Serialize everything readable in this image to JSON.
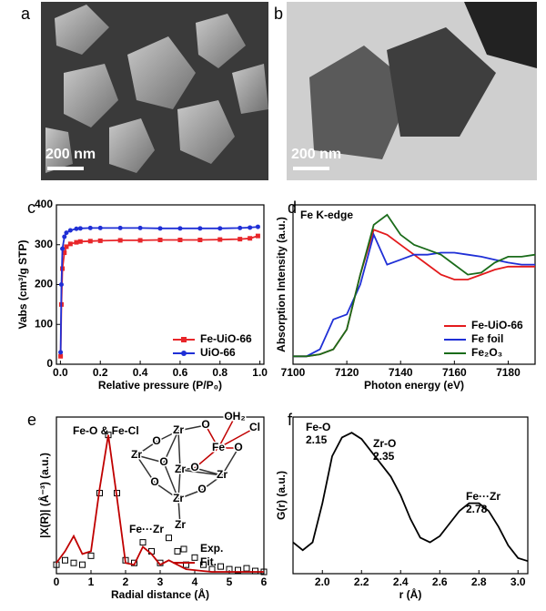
{
  "images": [
    {
      "panel": "a",
      "scale_bar": "200 nm"
    },
    {
      "panel": "b",
      "scale_bar": "200 nm"
    }
  ],
  "chart_data": [
    {
      "panel": "c",
      "type": "line",
      "xlabel": "Relative pressure (P/P₀)",
      "ylabel": "Vabs (cm³/g STP)",
      "xlim": [
        -0.02,
        1.02
      ],
      "ylim": [
        0,
        400
      ],
      "xticks": [
        {
          "value": 0,
          "label": "0.0"
        },
        0.2,
        0.4,
        0.6,
        0.8,
        {
          "value": 1,
          "label": "1.0"
        }
      ],
      "yticks": [
        0,
        100,
        200,
        300,
        400
      ],
      "x": [
        0.001,
        0.005,
        0.01,
        0.02,
        0.03,
        0.05,
        0.08,
        0.1,
        0.15,
        0.2,
        0.3,
        0.4,
        0.5,
        0.6,
        0.7,
        0.8,
        0.9,
        0.95,
        0.99
      ],
      "legend": "lower right",
      "series": [
        {
          "name": "Fe-UiO-66",
          "color": "#e8262a",
          "marker": "square",
          "line": true,
          "values": [
            20,
            150,
            240,
            280,
            295,
            302,
            306,
            308,
            309,
            310,
            311,
            311,
            312,
            312,
            312,
            313,
            314,
            316,
            322
          ]
        },
        {
          "name": "UiO-66",
          "color": "#1f2fd6",
          "marker": "circle",
          "line": true,
          "values": [
            30,
            200,
            290,
            320,
            330,
            336,
            340,
            341,
            342,
            342,
            342,
            342,
            341,
            341,
            341,
            341,
            342,
            343,
            345
          ]
        }
      ]
    },
    {
      "panel": "d",
      "type": "line",
      "xlabel": "Photon energy (eV)",
      "ylabel": "Absorption Intensity (a.u.)",
      "annotations": [
        "Fe K-edge"
      ],
      "xlim": [
        7100,
        7190
      ],
      "ylim": [
        0,
        1.6
      ],
      "xticks": [
        7100,
        7120,
        7140,
        7160,
        7180
      ],
      "x": [
        7100,
        7105,
        7110,
        7115,
        7120,
        7125,
        7130,
        7135,
        7140,
        7145,
        7150,
        7155,
        7160,
        7165,
        7170,
        7175,
        7180,
        7185,
        7190
      ],
      "legend": "lower right",
      "series": [
        {
          "name": "Fe-UiO-66",
          "color": "#e31a1c",
          "marker": "none",
          "line": true,
          "values": [
            0.08,
            0.08,
            0.1,
            0.15,
            0.35,
            0.9,
            1.35,
            1.3,
            1.2,
            1.1,
            1.0,
            0.9,
            0.85,
            0.85,
            0.9,
            0.95,
            0.98,
            0.98,
            0.98
          ]
        },
        {
          "name": "Fe foil",
          "color": "#1f2fd6",
          "marker": "none",
          "line": true,
          "values": [
            0.08,
            0.08,
            0.15,
            0.45,
            0.5,
            0.8,
            1.3,
            1.0,
            1.05,
            1.1,
            1.1,
            1.12,
            1.12,
            1.1,
            1.08,
            1.05,
            1.02,
            1.0,
            1.0
          ]
        },
        {
          "name": "Fe₂O₃",
          "color": "#1a6b1a",
          "marker": "none",
          "line": true,
          "values": [
            0.08,
            0.08,
            0.1,
            0.15,
            0.35,
            0.9,
            1.4,
            1.5,
            1.3,
            1.2,
            1.15,
            1.1,
            1.0,
            0.9,
            0.92,
            1.02,
            1.08,
            1.08,
            1.1
          ]
        }
      ]
    },
    {
      "panel": "e",
      "type": "line",
      "xlabel": "Radial distance (Å)",
      "ylabel": "|X(R)| (Å⁻³) (a.u.)",
      "annotations": [
        "Fe-O & Fe-Cl",
        "Fe···Zr"
      ],
      "structure": [
        {
          "text": "O",
          "color": "#c00000"
        },
        {
          "text": "OH₂",
          "color": "#c00000"
        },
        {
          "text": "Cl",
          "color": "#c00000"
        },
        {
          "text": "Fe",
          "color": "#c00000"
        },
        {
          "text": "O",
          "color": "#c00000"
        },
        {
          "text": "O",
          "color": "#c00000"
        },
        {
          "text": "Zr",
          "color": "#000000"
        },
        {
          "text": "O",
          "color": "#000000"
        },
        {
          "text": "Zr",
          "color": "#000000"
        },
        {
          "text": "Zr",
          "color": "#777777"
        },
        {
          "text": "O",
          "color": "#000000"
        },
        {
          "text": "Zr",
          "color": "#000000"
        },
        {
          "text": "O",
          "color": "#000000"
        },
        {
          "text": "O",
          "color": "#000000"
        },
        {
          "text": "Zr",
          "color": "#000000"
        },
        {
          "text": "Zr",
          "color": "#000000"
        }
      ],
      "xlim": [
        0,
        6
      ],
      "ylim": [
        0,
        1.75
      ],
      "xticks": [
        0,
        1,
        2,
        3,
        4,
        5,
        6
      ],
      "x": [
        0,
        0.25,
        0.5,
        0.75,
        1,
        1.25,
        1.5,
        1.75,
        2,
        2.25,
        2.5,
        2.75,
        3,
        3.25,
        3.5,
        3.75,
        4,
        4.25,
        4.5,
        4.75,
        5,
        5.25,
        5.5,
        5.75,
        6
      ],
      "legend": "lower right",
      "series": [
        {
          "name": "Exp.",
          "color": "#000000",
          "marker": "square-open",
          "line": false,
          "values": [
            0.1,
            0.15,
            0.12,
            0.1,
            0.2,
            0.9,
            1.55,
            0.9,
            0.15,
            0.12,
            0.35,
            0.25,
            0.12,
            0.4,
            0.25,
            0.1,
            0.18,
            0.1,
            0.05,
            0.08,
            0.05,
            0.04,
            0.06,
            0.03,
            0.02
          ]
        },
        {
          "name": "Fit.",
          "color": "#c00000",
          "marker": "none",
          "line": true,
          "values": [
            0.12,
            0.25,
            0.42,
            0.22,
            0.25,
            0.95,
            1.55,
            0.85,
            0.12,
            0.1,
            0.3,
            0.22,
            0.1,
            0.15,
            0.1,
            0.05,
            0.04,
            0.03,
            0.02,
            0.02,
            0.02,
            0.02,
            0.02,
            0.02,
            0.02
          ]
        }
      ]
    },
    {
      "panel": "f",
      "type": "line",
      "xlabel": "r (Å)",
      "ylabel": "G(r) (a.u.)",
      "annotations": [
        "Fe-O",
        "2.15",
        "Zr-O",
        "2.35",
        "Fe···Zr",
        "2.78"
      ],
      "xlim": [
        1.85,
        3.05
      ],
      "ylim": [
        0.1,
        1.1
      ],
      "xticks": [
        {
          "value": 2,
          "label": "2.0"
        },
        2.2,
        2.4,
        2.6,
        2.8,
        {
          "value": 3,
          "label": "3.0"
        }
      ],
      "x": [
        1.85,
        1.9,
        1.95,
        2.0,
        2.05,
        2.1,
        2.15,
        2.2,
        2.25,
        2.3,
        2.35,
        2.4,
        2.45,
        2.5,
        2.55,
        2.6,
        2.65,
        2.7,
        2.75,
        2.8,
        2.85,
        2.9,
        2.95,
        3.0,
        3.05
      ],
      "series": [
        {
          "name": null,
          "color": "#000000",
          "marker": "none",
          "line": true,
          "values": [
            0.3,
            0.25,
            0.3,
            0.55,
            0.85,
            0.97,
            1.0,
            0.96,
            0.88,
            0.8,
            0.72,
            0.6,
            0.45,
            0.33,
            0.3,
            0.34,
            0.42,
            0.5,
            0.55,
            0.55,
            0.5,
            0.4,
            0.28,
            0.2,
            0.18
          ]
        }
      ]
    }
  ]
}
